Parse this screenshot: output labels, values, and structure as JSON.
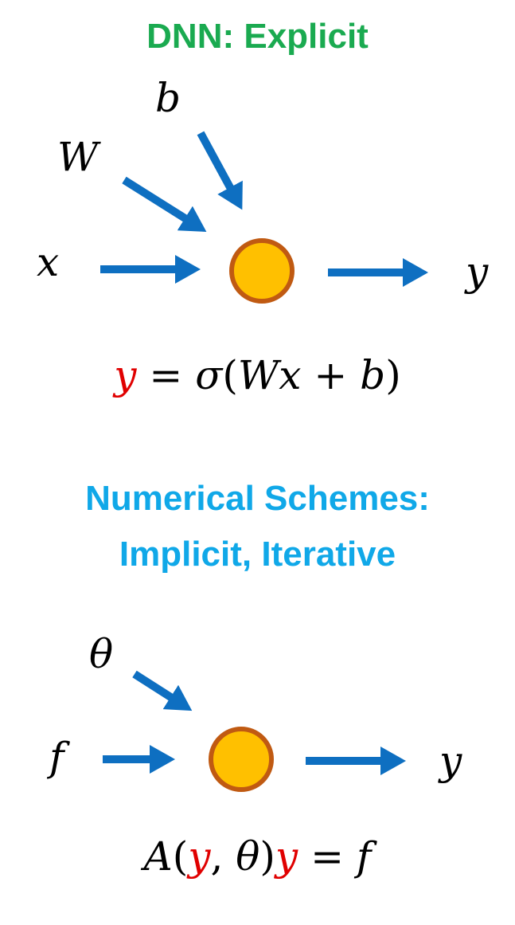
{
  "colors": {
    "title_green": "#1aaa50",
    "title_blue": "#10a8e8",
    "arrow_blue": "#0e6fc1",
    "node_fill": "#ffc000",
    "node_stroke": "#c05a12",
    "highlight_red": "#e00000"
  },
  "explicit": {
    "title": "DNN: Explicit",
    "inputs": {
      "b": "b",
      "W": "W",
      "x": "x"
    },
    "output": "y",
    "equation": {
      "lhs": "y",
      "eq": " = ",
      "sigma": "σ",
      "open": "(",
      "W": "W",
      "x": "x",
      "plus": " + ",
      "b": "b",
      "close": ")"
    }
  },
  "implicit": {
    "title_line1": "Numerical Schemes:",
    "title_line2": "Implicit, Iterative",
    "inputs": {
      "theta": "θ",
      "f": "f"
    },
    "output": "y",
    "equation": {
      "A": "A",
      "open": "(",
      "y1": "y",
      "comma": ", ",
      "theta": "θ",
      "close": ")",
      "y2": "y",
      "eq": " = ",
      "f": "f"
    }
  }
}
